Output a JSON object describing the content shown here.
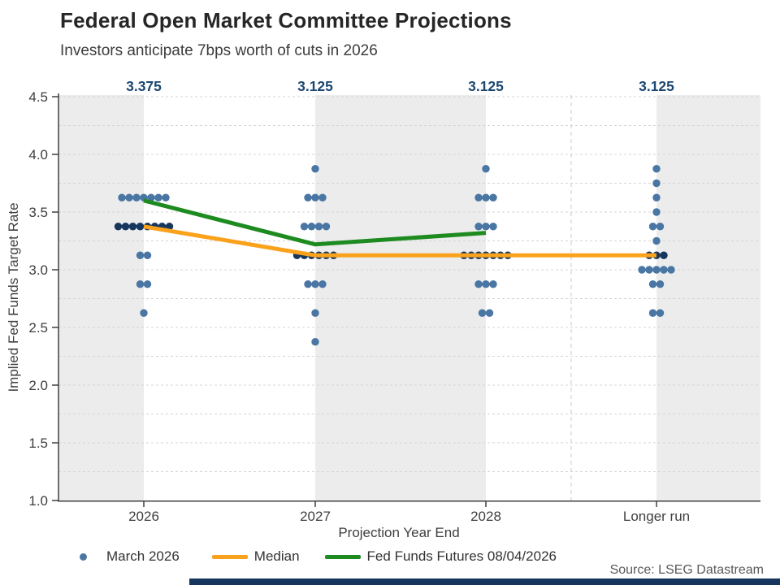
{
  "source_note": "Source: LSEG Datastream",
  "colors": {
    "dot_light": "#4A76A4",
    "dot_dark": "#17365E",
    "median_orange": "#FAA21B",
    "futures_green": "#1D8B20",
    "band_grey": "#ECECEC",
    "grid_grey": "#D4D4D4",
    "axis_grey": "#404040",
    "top_label_navy": "#1B4771",
    "bottom_bar_navy": "#17365E"
  },
  "chart_data": {
    "type": "scatter",
    "title": "Federal Open Market Committee Projections",
    "subtitle": "Investors anticipate 7bps worth of cuts in 2026",
    "xlabel": "Projection Year End",
    "ylabel": "Implied Fed Funds Target Rate",
    "categories": [
      "2026",
      "2027",
      "2028",
      "Longer run"
    ],
    "column_top_labels": [
      "3.375",
      "3.125",
      "3.125",
      "3.125"
    ],
    "ylim": [
      1.0,
      4.5
    ],
    "yticks": [
      1.0,
      1.5,
      2.0,
      2.5,
      3.0,
      3.5,
      4.0,
      4.5
    ],
    "grid_step": 0.25,
    "grid": "dashed horizontal every 0.25; vertical dashed divider before Longer run; alternating grey column bands",
    "columns": [
      {
        "category": "2026",
        "top_label": "3.375",
        "levels": [
          {
            "rate": 3.625,
            "count": 7
          },
          {
            "rate": 3.375,
            "count": 8,
            "dark": true
          },
          {
            "rate": 3.125,
            "count": 2
          },
          {
            "rate": 2.875,
            "count": 2
          },
          {
            "rate": 2.625,
            "count": 1
          }
        ]
      },
      {
        "category": "2027",
        "top_label": "3.125",
        "levels": [
          {
            "rate": 3.875,
            "count": 1
          },
          {
            "rate": 3.625,
            "count": 3
          },
          {
            "rate": 3.375,
            "count": 4
          },
          {
            "rate": 3.125,
            "count": 6,
            "dark": true
          },
          {
            "rate": 2.875,
            "count": 3
          },
          {
            "rate": 2.625,
            "count": 1
          },
          {
            "rate": 2.375,
            "count": 1
          }
        ]
      },
      {
        "category": "2028",
        "top_label": "3.125",
        "levels": [
          {
            "rate": 3.875,
            "count": 1
          },
          {
            "rate": 3.625,
            "count": 3
          },
          {
            "rate": 3.375,
            "count": 3
          },
          {
            "rate": 3.125,
            "count": 7,
            "dark": true
          },
          {
            "rate": 2.875,
            "count": 3
          },
          {
            "rate": 2.625,
            "count": 2
          }
        ]
      },
      {
        "category": "Longer run",
        "top_label": "3.125",
        "levels": [
          {
            "rate": 3.875,
            "count": 1
          },
          {
            "rate": 3.75,
            "count": 1
          },
          {
            "rate": 3.625,
            "count": 1
          },
          {
            "rate": 3.5,
            "count": 1
          },
          {
            "rate": 3.375,
            "count": 2
          },
          {
            "rate": 3.25,
            "count": 1
          },
          {
            "rate": 3.125,
            "count": 3,
            "dark": true
          },
          {
            "rate": 3.0,
            "count": 5
          },
          {
            "rate": 2.875,
            "count": 2
          },
          {
            "rate": 2.625,
            "count": 2
          }
        ]
      }
    ],
    "series": [
      {
        "name": "March 2026",
        "type": "dots",
        "color": "#4A76A4",
        "color_dark": "#17365E"
      },
      {
        "name": "Median",
        "type": "line",
        "color": "#FAA21B",
        "values": [
          3.375,
          3.125,
          3.125,
          3.125
        ]
      },
      {
        "name": "Fed Funds Futures 08/04/2026",
        "type": "line",
        "color": "#1D8B20",
        "values": [
          3.6,
          3.22,
          3.32,
          null
        ]
      }
    ],
    "legend_position": "bottom-left"
  }
}
